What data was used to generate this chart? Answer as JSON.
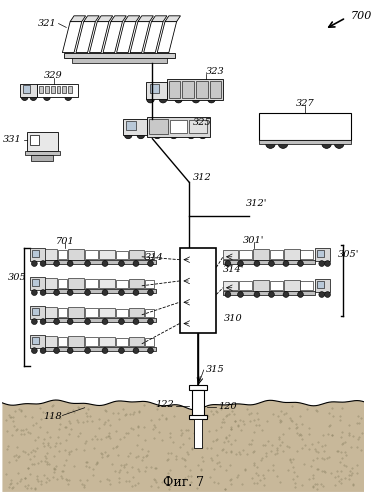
{
  "title": "Фиг. 7",
  "label_700": "700",
  "label_321": "321",
  "label_323": "323",
  "label_325": "325",
  "label_327": "327",
  "label_329": "329",
  "label_331": "331",
  "label_312": "312",
  "label_312p": "312'",
  "label_310": "310",
  "label_314": "314",
  "label_314p": "314'",
  "label_305": "305",
  "label_305p": "305'",
  "label_701": "701",
  "label_301p": "301'",
  "label_315": "315",
  "label_118": "118",
  "label_122": "122",
  "label_120": "120",
  "bg_color": "#ffffff",
  "line_color": "#000000",
  "ground_color": "#c8b89a",
  "fig_width": 3.74,
  "fig_height": 5.0
}
